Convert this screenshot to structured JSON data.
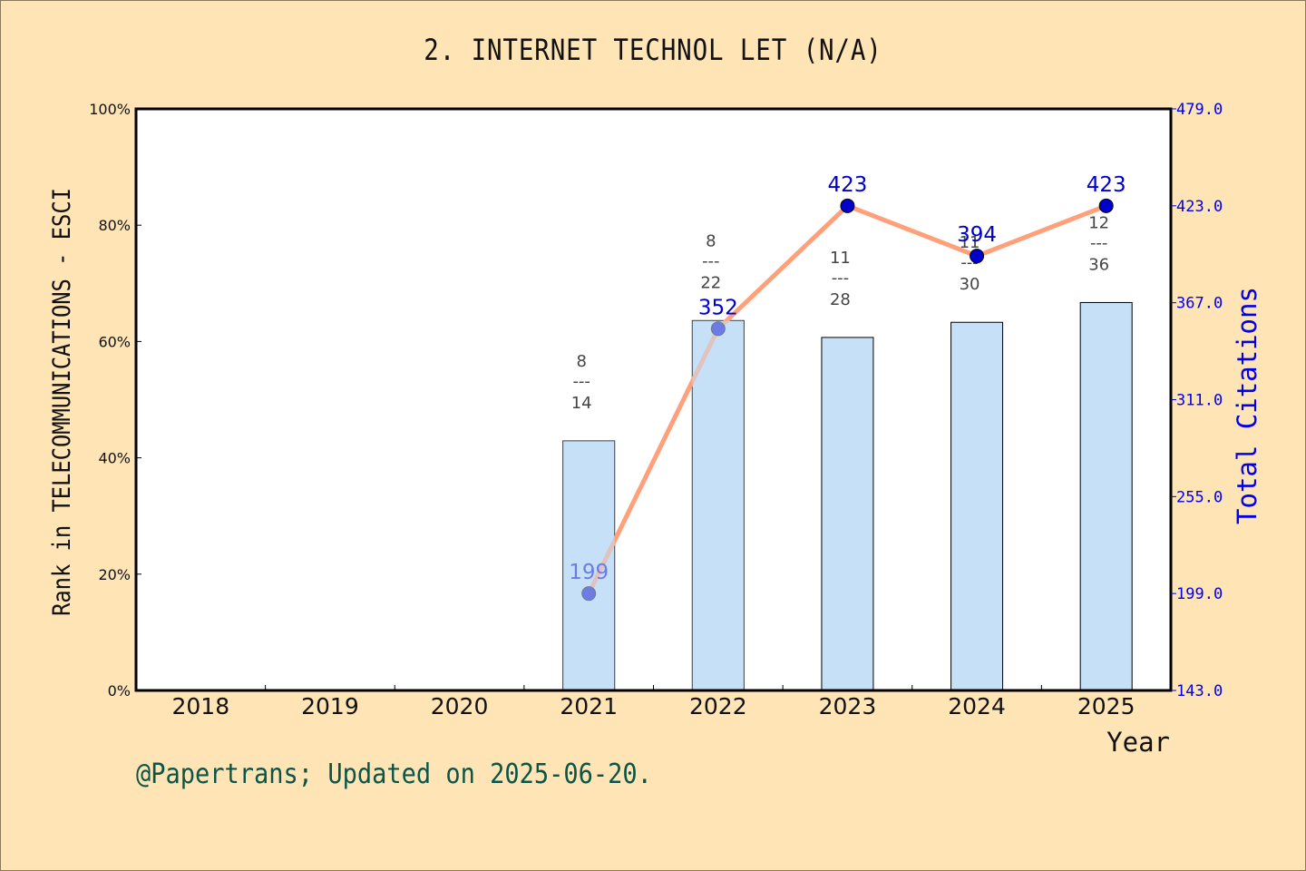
{
  "title": "2. INTERNET TECHNOL LET (N/A)",
  "footer": "@Papertrans; Updated on 2025-06-20.",
  "axes": {
    "xlabel": "Year",
    "ylabel_left": "Rank in TELECOMMUNICATIONS - ESCI",
    "ylabel_right": "Total Citations",
    "left_ticks": [
      "0%",
      "20%",
      "40%",
      "60%",
      "80%",
      "100%"
    ],
    "right_ticks": [
      "143.0",
      "199.0",
      "255.0",
      "311.0",
      "367.0",
      "423.0",
      "479.0"
    ],
    "x_ticks": [
      "2018",
      "2019",
      "2020",
      "2021",
      "2022",
      "2023",
      "2024",
      "2025"
    ]
  },
  "colors": {
    "background": "#ffe4b5",
    "bar_fill": "#c6e0f7",
    "line": "#ffa07a",
    "marker": "#0000cc",
    "right_axis": "#0000ee",
    "footer": "#0b5548"
  },
  "chart_data": {
    "type": "bar+line",
    "title": "2. INTERNET TECHNOL LET (N/A)",
    "xlabel": "Year",
    "categories": [
      "2018",
      "2019",
      "2020",
      "2021",
      "2022",
      "2023",
      "2024",
      "2025"
    ],
    "series": [
      {
        "name": "Rank percentile (Rank in TELECOMMUNICATIONS - ESCI)",
        "type": "bar",
        "axis": "left",
        "ylim": [
          0,
          100
        ],
        "unit": "%",
        "values": [
          null,
          null,
          null,
          42.9,
          63.6,
          60.7,
          63.3,
          66.7
        ],
        "labels": [
          null,
          null,
          null,
          "8/14",
          "8/22",
          "11/28",
          "11/30",
          "12/36"
        ],
        "rank": [
          null,
          null,
          null,
          8,
          8,
          11,
          11,
          12
        ],
        "total": [
          null,
          null,
          null,
          14,
          22,
          28,
          30,
          36
        ]
      },
      {
        "name": "Total Citations",
        "type": "line",
        "axis": "right",
        "ylim": [
          143,
          479
        ],
        "values": [
          null,
          null,
          null,
          199,
          352,
          423,
          394,
          423
        ]
      }
    ],
    "ylabel": "Rank in TELECOMMUNICATIONS - ESCI",
    "ylabel_right": "Total Citations",
    "grid": false,
    "legend": "none"
  }
}
